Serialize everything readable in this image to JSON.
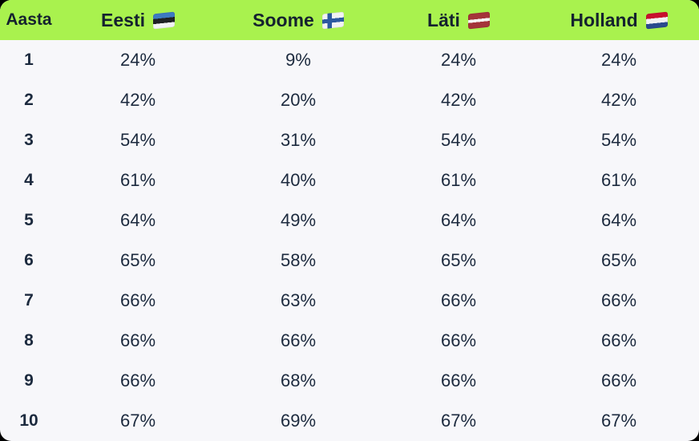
{
  "table": {
    "header": [
      {
        "label": "Aasta",
        "icon": null
      },
      {
        "label": "Eesti",
        "icon": "estonia-flag-icon"
      },
      {
        "label": "Soome",
        "icon": "finland-flag-icon"
      },
      {
        "label": "Läti",
        "icon": "latvia-flag-icon"
      },
      {
        "label": "Holland",
        "icon": "netherlands-flag-icon"
      }
    ],
    "rows": [
      {
        "year": "1",
        "eesti": "24%",
        "soome": "9%",
        "lati": "24%",
        "holland": "24%"
      },
      {
        "year": "2",
        "eesti": "42%",
        "soome": "20%",
        "lati": "42%",
        "holland": "42%"
      },
      {
        "year": "3",
        "eesti": "54%",
        "soome": "31%",
        "lati": "54%",
        "holland": "54%"
      },
      {
        "year": "4",
        "eesti": "61%",
        "soome": "40%",
        "lati": "61%",
        "holland": "61%"
      },
      {
        "year": "5",
        "eesti": "64%",
        "soome": "49%",
        "lati": "64%",
        "holland": "64%"
      },
      {
        "year": "6",
        "eesti": "65%",
        "soome": "58%",
        "lati": "65%",
        "holland": "65%"
      },
      {
        "year": "7",
        "eesti": "66%",
        "soome": "63%",
        "lati": "66%",
        "holland": "66%"
      },
      {
        "year": "8",
        "eesti": "66%",
        "soome": "66%",
        "lati": "66%",
        "holland": "66%"
      },
      {
        "year": "9",
        "eesti": "66%",
        "soome": "68%",
        "lati": "66%",
        "holland": "66%"
      },
      {
        "year": "10",
        "eesti": "67%",
        "soome": "69%",
        "lati": "67%",
        "holland": "67%"
      }
    ]
  },
  "chart_data": {
    "type": "table",
    "title": "",
    "categories": [
      1,
      2,
      3,
      4,
      5,
      6,
      7,
      8,
      9,
      10
    ],
    "category_label": "Aasta",
    "unit": "%",
    "series": [
      {
        "name": "Eesti",
        "values": [
          24,
          42,
          54,
          61,
          64,
          65,
          66,
          66,
          66,
          67
        ]
      },
      {
        "name": "Soome",
        "values": [
          9,
          20,
          31,
          40,
          49,
          58,
          63,
          66,
          68,
          69
        ]
      },
      {
        "name": "Läti",
        "values": [
          24,
          42,
          54,
          61,
          64,
          65,
          66,
          66,
          66,
          67
        ]
      },
      {
        "name": "Holland",
        "values": [
          24,
          42,
          54,
          61,
          64,
          65,
          66,
          66,
          66,
          67
        ]
      }
    ]
  },
  "colors": {
    "header_bg": "#a9f24e",
    "card_bg": "#f7f7fa",
    "text": "#1c2a3e",
    "header_text": "#15222f"
  }
}
